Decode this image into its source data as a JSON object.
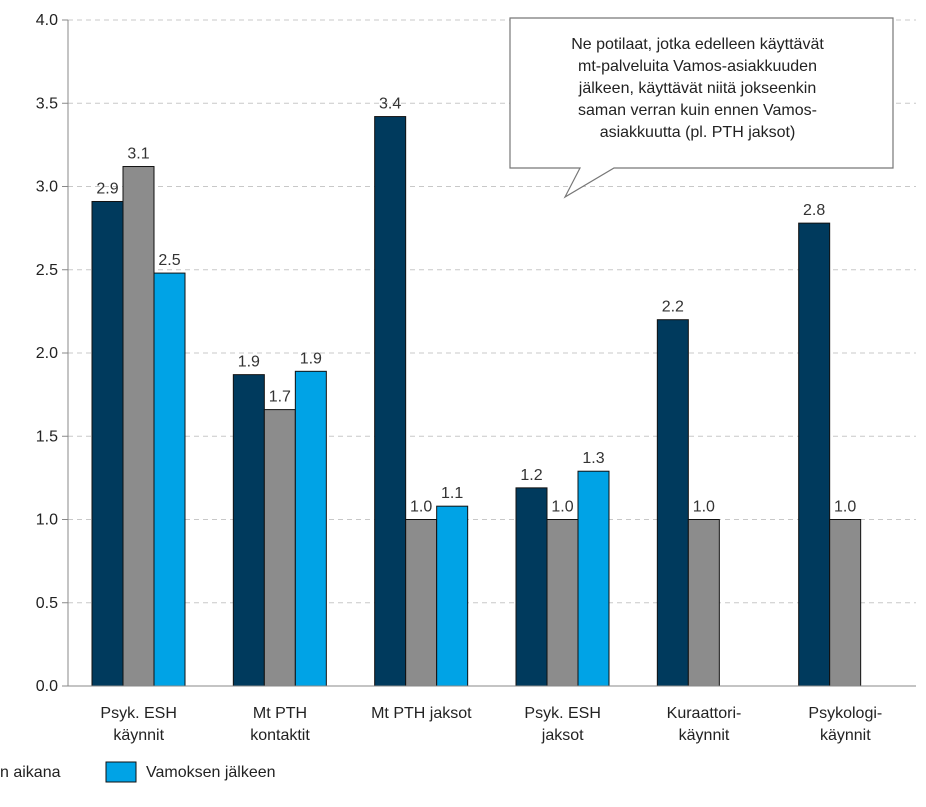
{
  "chart_data": {
    "type": "bar",
    "categories": [
      [
        "Psyk. ESH",
        "käynnit"
      ],
      [
        "Mt PTH",
        "kontaktit"
      ],
      [
        "Mt PTH jaksot"
      ],
      [
        "Psyk. ESH",
        "jaksot"
      ],
      [
        "Kuraattori-",
        "käynnit"
      ],
      [
        "Psykologi-",
        "käynnit"
      ]
    ],
    "series": [
      {
        "name": "",
        "color": "#003a5d",
        "values": [
          2.9,
          1.9,
          3.4,
          1.2,
          2.2,
          2.8
        ],
        "labels": [
          "2.9",
          "1.9",
          "3.4",
          "1.2",
          "2.2",
          "2.8"
        ]
      },
      {
        "name": "n aikana",
        "color": "#8c8c8c",
        "values": [
          3.1,
          1.7,
          1.0,
          1.0,
          1.0,
          1.0
        ],
        "labels": [
          "3.1",
          "1.7",
          "1.0",
          "1.0",
          "1.0",
          "1.0"
        ]
      },
      {
        "name": "Vamoksen jälkeen",
        "color": "#00a3e6",
        "values": [
          2.5,
          1.9,
          1.1,
          1.3,
          null,
          null
        ],
        "labels": [
          "2.5",
          "1.9",
          "1.1",
          "1.3",
          "",
          ""
        ]
      }
    ],
    "bar_values_precise": [
      [
        2.91,
        3.12,
        2.48
      ],
      [
        1.87,
        1.66,
        1.89
      ],
      [
        3.42,
        1.0,
        1.08
      ],
      [
        1.19,
        1.0,
        1.29
      ],
      [
        2.2,
        1.0,
        null
      ],
      [
        2.78,
        1.0,
        null
      ]
    ],
    "yticks": [
      "0.0",
      "0.5",
      "1.0",
      "1.5",
      "2.0",
      "2.5",
      "3.0",
      "3.5",
      "4.0"
    ],
    "ylim": [
      0,
      4.0
    ],
    "grid": true,
    "legend_placement": "bottom-left",
    "annotation": [
      "Ne potilaat, jotka edelleen käyttävät",
      "mt-palveluita Vamos-asiakkuuden",
      "jälkeen, käyttävät niitä jokseenkin",
      "saman verran kuin ennen Vamos-",
      "asiakkuutta (pl. PTH jaksot)"
    ]
  }
}
